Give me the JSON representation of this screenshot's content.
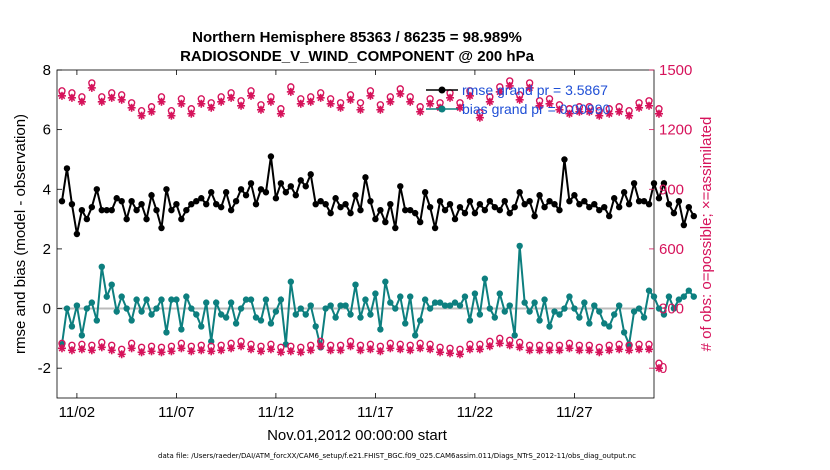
{
  "chart_data": {
    "type": "line",
    "title": "Northern Hemisphere 85363 / 86235 = 98.989%",
    "subtitle": "RADIOSONDE_V_WIND_COMPONENT @ 200 hPa",
    "xlabel": "Nov.01,2012 00:00:00 start",
    "ylabel_left": "rmse and bias (model - observation)",
    "ylabel_right": "# of obs: o=possible; ×=assimilated",
    "footnote": "data file: /Users/raeder/DAI/ATM_forcXX/CAM6_setup/f.e21.FHIST_BGC.f09_025.CAM6assim.011/Diags_NTrS_2012-11/obs_diag_output.nc",
    "x_ticks": [
      "11/02",
      "11/07",
      "11/12",
      "11/17",
      "11/22",
      "11/27"
    ],
    "x_tick_days": [
      2,
      7,
      12,
      17,
      22,
      27
    ],
    "x_range_days": [
      1,
      31
    ],
    "y_left_ticks": [
      "-2",
      "0",
      "2",
      "4",
      "6",
      "8"
    ],
    "y_left_range": [
      -3,
      8
    ],
    "y_right_ticks": [
      "0",
      "300",
      "600",
      "900",
      "1200",
      "1500"
    ],
    "y_right_range": [
      -150,
      1500
    ],
    "legend": [
      {
        "label": "rmse grand pr = 3.5867",
        "color": "#000000"
      },
      {
        "label": "bias grand pr = 0.00990",
        "color": "#0d7f7f"
      }
    ],
    "colors": {
      "rmse": "#000000",
      "bias": "#0d7f7f",
      "obs": "#d6135b",
      "zero_line": "#bbbbbb"
    },
    "series": [
      {
        "name": "rmse",
        "axis": "left",
        "x_step_days": 0.25,
        "values": [
          3.6,
          4.7,
          3.5,
          2.5,
          3.3,
          3.0,
          3.4,
          4.0,
          3.3,
          3.3,
          3.3,
          3.7,
          3.6,
          3.0,
          3.6,
          3.3,
          3.5,
          3.0,
          3.8,
          3.3,
          2.7,
          4.0,
          3.3,
          3.5,
          3.0,
          3.3,
          3.5,
          3.6,
          3.7,
          3.5,
          3.9,
          3.5,
          3.4,
          3.9,
          3.3,
          3.6,
          4.0,
          3.8,
          4.2,
          3.5,
          4.0,
          3.9,
          5.1,
          3.7,
          4.2,
          3.9,
          4.1,
          3.8,
          4.3,
          4.1,
          4.5,
          3.5,
          3.6,
          3.5,
          3.2,
          3.7,
          3.4,
          3.5,
          3.2,
          3.8,
          3.3,
          4.4,
          3.6,
          3.0,
          3.3,
          2.9,
          3.5,
          2.7,
          4.1,
          3.3,
          3.3,
          3.2,
          2.9,
          3.9,
          3.4,
          2.7,
          3.6,
          3.3,
          3.5,
          3.0,
          3.4,
          3.2,
          3.6,
          3.2,
          3.5,
          3.3,
          3.6,
          3.4,
          3.3,
          3.6,
          3.2,
          3.4,
          3.9,
          3.5,
          3.6,
          3.1,
          3.8,
          3.4,
          3.6,
          3.5,
          3.3,
          5.0,
          3.6,
          3.8,
          3.5,
          3.6,
          3.4,
          3.5,
          3.3,
          3.4,
          3.1,
          3.7,
          3.4,
          3.9,
          3.5,
          4.2,
          3.6,
          3.6,
          3.5,
          4.2,
          3.7,
          4.2,
          3.5,
          3.2,
          3.6,
          2.8,
          3.4,
          3.1
        ],
        "marker": "dot"
      },
      {
        "name": "bias",
        "axis": "left",
        "x_step_days": 0.25,
        "values": [
          -1.2,
          0.0,
          -0.6,
          0.1,
          -0.9,
          0.0,
          0.2,
          -0.4,
          1.4,
          0.4,
          0.8,
          -0.1,
          0.4,
          0.0,
          -0.4,
          0.3,
          -0.1,
          0.3,
          -0.2,
          0.0,
          0.3,
          -0.8,
          0.3,
          0.3,
          -0.7,
          0.4,
          0.0,
          -0.2,
          -0.6,
          0.2,
          -1.1,
          0.2,
          -0.2,
          -0.3,
          0.2,
          -0.5,
          0.0,
          0.3,
          0.3,
          -0.3,
          -0.4,
          0.3,
          -0.5,
          -0.1,
          0.3,
          -1.2,
          0.9,
          -0.2,
          0.0,
          -0.2,
          0.1,
          -0.6,
          -1.3,
          0.0,
          0.1,
          -0.3,
          0.1,
          0.1,
          -0.2,
          0.8,
          -0.3,
          0.3,
          -0.2,
          0.5,
          -0.7,
          0.9,
          0.2,
          0.0,
          0.4,
          -0.5,
          0.4,
          -0.9,
          -0.4,
          0.3,
          0.0,
          0.2,
          0.2,
          0.1,
          0.1,
          0.2,
          0.1,
          0.4,
          -0.4,
          0.5,
          -0.2,
          1.0,
          0.0,
          -0.3,
          0.5,
          -0.1,
          0.1,
          -0.9,
          2.1,
          0.2,
          -0.1,
          0.2,
          -0.4,
          0.3,
          -0.6,
          -0.1,
          -0.2,
          0.0,
          0.4,
          0.0,
          -0.3,
          0.2,
          -0.5,
          0.1,
          -0.1,
          -0.5,
          -0.6,
          -0.2,
          0.1,
          -0.8,
          -1.2,
          -0.1,
          0.0,
          -0.3,
          0.6,
          0.4,
          0.0,
          -0.2,
          0.4,
          0.0,
          0.3,
          0.4,
          0.6,
          0.4
        ],
        "marker": "dot"
      },
      {
        "name": "possible",
        "axis": "right",
        "x_step_days": 0.5,
        "values": [
          1380,
          1370,
          1350,
          1420,
          1350,
          1370,
          1360,
          1320,
          1280,
          1300,
          1350,
          1280,
          1340,
          1290,
          1340,
          1320,
          1350,
          1370,
          1330,
          1380,
          1310,
          1350,
          1290,
          1400,
          1340,
          1350,
          1370,
          1340,
          1320,
          1360,
          1320,
          1380,
          1310,
          1350,
          1390,
          1350,
          1300,
          1340,
          1320,
          1370,
          1320,
          1380,
          1270,
          1350,
          1400,
          1430,
          1360,
          1420,
          1330,
          1340,
          1310,
          1290,
          1300,
          1300,
          1280,
          1290,
          1300,
          1280,
          1320,
          1330,
          1290
        ],
        "marker": "circle"
      },
      {
        "name": "assimilated",
        "axis": "right",
        "x_step_days": 0.5,
        "values": [
          1370,
          1360,
          1340,
          1410,
          1340,
          1360,
          1350,
          1310,
          1270,
          1290,
          1340,
          1270,
          1330,
          1280,
          1330,
          1310,
          1340,
          1360,
          1320,
          1370,
          1300,
          1340,
          1280,
          1390,
          1330,
          1340,
          1360,
          1330,
          1310,
          1350,
          1300,
          1370,
          1300,
          1340,
          1380,
          1340,
          1290,
          1330,
          1310,
          1360,
          1310,
          1370,
          1260,
          1340,
          1390,
          1420,
          1350,
          1410,
          1320,
          1330,
          1300,
          1280,
          1290,
          1290,
          1270,
          1280,
          1290,
          1270,
          1310,
          1320,
          1280
        ],
        "marker": "asterisk"
      },
      {
        "name": "assimilated-low",
        "axis": "right",
        "x_step_days": 0.5,
        "values": [
          100,
          90,
          95,
          90,
          105,
          90,
          70,
          100,
          80,
          85,
          80,
          85,
          100,
          85,
          90,
          85,
          90,
          100,
          110,
          95,
          85,
          95,
          80,
          85,
          80,
          90,
          110,
          90,
          90,
          110,
          90,
          95,
          85,
          100,
          95,
          90,
          100,
          95,
          80,
          75,
          70,
          95,
          95,
          110,
          125,
          115,
          105,
          90,
          90,
          90,
          90,
          100,
          90,
          90,
          80,
          90,
          95,
          90,
          95,
          95,
          0
        ],
        "marker": "asterisk"
      },
      {
        "name": "possible-low",
        "axis": "right",
        "x_step_days": 0.5,
        "values": [
          110,
          100,
          105,
          100,
          115,
          100,
          80,
          110,
          90,
          95,
          90,
          95,
          110,
          95,
          100,
          95,
          100,
          110,
          120,
          105,
          95,
          105,
          90,
          95,
          90,
          100,
          120,
          100,
          100,
          120,
          100,
          105,
          95,
          110,
          105,
          100,
          110,
          105,
          90,
          85,
          80,
          105,
          105,
          120,
          135,
          125,
          115,
          100,
          100,
          100,
          100,
          110,
          100,
          100,
          90,
          100,
          105,
          100,
          105,
          105,
          10
        ],
        "marker": "circle"
      }
    ]
  }
}
